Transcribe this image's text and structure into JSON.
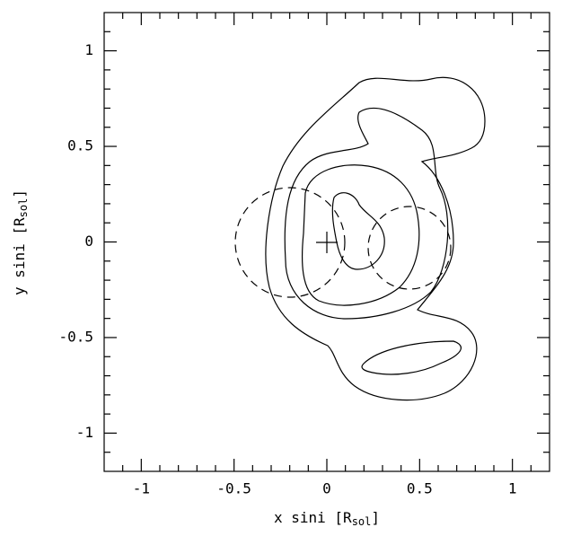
{
  "chart_data": {
    "type": "contour",
    "x_label": [
      "x sini [R",
      "sol",
      "]"
    ],
    "y_label": [
      "y sini [R",
      "sol",
      "]"
    ],
    "xlim": [
      -1.2,
      1.2
    ],
    "ylim": [
      -1.2,
      1.2
    ],
    "xticks": [
      -1,
      -0.5,
      0,
      0.5,
      1
    ],
    "yticks": [
      -1,
      -0.5,
      0,
      0.5,
      1
    ],
    "xminorticks": [
      -1.1,
      -0.9,
      -0.8,
      -0.7,
      -0.6,
      -0.4,
      -0.3,
      -0.2,
      -0.1,
      0.1,
      0.2,
      0.3,
      0.4,
      0.6,
      0.7,
      0.8,
      0.9,
      1.1
    ],
    "yminorticks": [
      -1.1,
      -0.9,
      -0.8,
      -0.7,
      -0.6,
      -0.4,
      -0.3,
      -0.2,
      -0.1,
      0.1,
      0.2,
      0.3,
      0.4,
      0.6,
      0.7,
      0.8,
      0.9,
      1.1
    ]
  }
}
